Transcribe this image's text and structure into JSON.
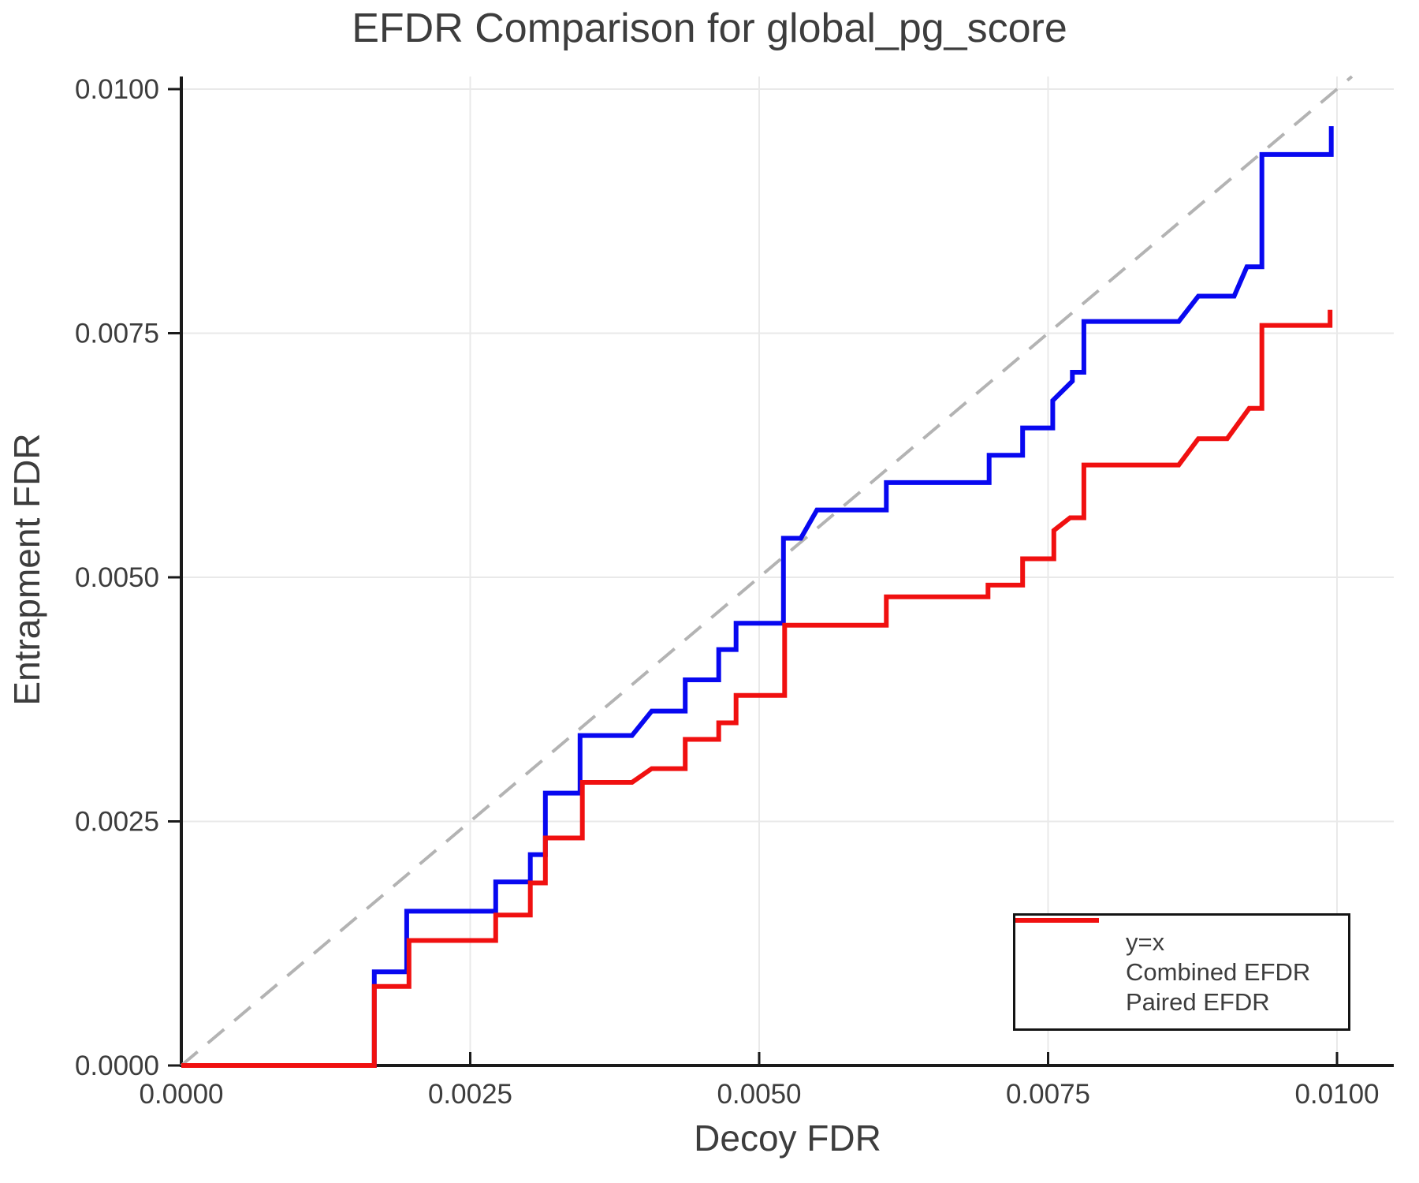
{
  "chart_data": {
    "type": "line",
    "title": "EFDR Comparison for global_pg_score",
    "xlabel": "Decoy FDR",
    "ylabel": "Entrapment FDR",
    "xlim": [
      0.0,
      0.010491
    ],
    "ylim": [
      0.0,
      0.010129
    ],
    "grid": true,
    "legend_position": "bottom-right",
    "colors": {
      "grid": "#e9e9e9",
      "axis": "#1a1a1a",
      "text": "#3d3d3d",
      "background": "#ffffff",
      "diagonal": "#b3b3b3",
      "combined": "#0808f0",
      "paired": "#f01010"
    },
    "xticks": {
      "values": [
        0.0,
        0.0025,
        0.005,
        0.0075,
        0.01
      ],
      "labels": [
        "0.0000",
        "0.0025",
        "0.0050",
        "0.0075",
        "0.0100"
      ]
    },
    "yticks": {
      "values": [
        0.0,
        0.0025,
        0.005,
        0.0075,
        0.01
      ],
      "labels": [
        "0.0000",
        "0.0025",
        "0.0050",
        "0.0075",
        "0.0100"
      ]
    },
    "series": [
      {
        "name": "y=x",
        "style": "dashed",
        "color": "#b3b3b3",
        "width": 4,
        "points": [
          [
            0.0,
            0.0
          ],
          [
            0.010129,
            0.010129
          ]
        ]
      },
      {
        "name": "Combined EFDR",
        "style": "solid",
        "color": "#0808f0",
        "width": 6,
        "points": [
          [
            0.0,
            0.0
          ],
          [
            0.00167,
            0.0
          ],
          [
            0.00167,
            0.00096
          ],
          [
            0.00195,
            0.00096
          ],
          [
            0.00195,
            0.00158
          ],
          [
            0.00272,
            0.00158
          ],
          [
            0.00272,
            0.00188
          ],
          [
            0.00302,
            0.00188
          ],
          [
            0.00302,
            0.00216
          ],
          [
            0.00315,
            0.00216
          ],
          [
            0.00315,
            0.00279
          ],
          [
            0.00345,
            0.00279
          ],
          [
            0.00345,
            0.00338
          ],
          [
            0.0039,
            0.00338
          ],
          [
            0.00407,
            0.00363
          ],
          [
            0.00436,
            0.00363
          ],
          [
            0.00436,
            0.00395
          ],
          [
            0.00465,
            0.00395
          ],
          [
            0.00465,
            0.00426
          ],
          [
            0.0048,
            0.00426
          ],
          [
            0.0048,
            0.00453
          ],
          [
            0.00521,
            0.00453
          ],
          [
            0.00521,
            0.0054
          ],
          [
            0.00536,
            0.0054
          ],
          [
            0.0055,
            0.00569
          ],
          [
            0.0061,
            0.00569
          ],
          [
            0.0061,
            0.00597
          ],
          [
            0.00699,
            0.00597
          ],
          [
            0.00699,
            0.00625
          ],
          [
            0.00728,
            0.00625
          ],
          [
            0.00728,
            0.00653
          ],
          [
            0.00754,
            0.00653
          ],
          [
            0.00754,
            0.00681
          ],
          [
            0.00771,
            0.00701
          ],
          [
            0.00771,
            0.0071
          ],
          [
            0.00781,
            0.0071
          ],
          [
            0.00781,
            0.00762
          ],
          [
            0.00863,
            0.00762
          ],
          [
            0.0088,
            0.00788
          ],
          [
            0.00911,
            0.00788
          ],
          [
            0.00922,
            0.00818
          ],
          [
            0.00935,
            0.00818
          ],
          [
            0.00935,
            0.00933
          ],
          [
            0.00995,
            0.00933
          ],
          [
            0.00995,
            0.00962
          ]
        ]
      },
      {
        "name": "Paired EFDR",
        "style": "solid",
        "color": "#f01010",
        "width": 6,
        "points": [
          [
            0.0,
            0.0
          ],
          [
            0.00167,
            0.0
          ],
          [
            0.00167,
            0.00081
          ],
          [
            0.00197,
            0.00081
          ],
          [
            0.00197,
            0.00128
          ],
          [
            0.00272,
            0.00128
          ],
          [
            0.00272,
            0.00154
          ],
          [
            0.00302,
            0.00154
          ],
          [
            0.00302,
            0.00187
          ],
          [
            0.00315,
            0.00187
          ],
          [
            0.00315,
            0.00233
          ],
          [
            0.00347,
            0.00233
          ],
          [
            0.00347,
            0.0029
          ],
          [
            0.0039,
            0.0029
          ],
          [
            0.00407,
            0.00304
          ],
          [
            0.00436,
            0.00304
          ],
          [
            0.00436,
            0.00334
          ],
          [
            0.00465,
            0.00334
          ],
          [
            0.00465,
            0.00351
          ],
          [
            0.0048,
            0.00351
          ],
          [
            0.0048,
            0.00379
          ],
          [
            0.00522,
            0.00379
          ],
          [
            0.00522,
            0.00451
          ],
          [
            0.0061,
            0.00451
          ],
          [
            0.0061,
            0.0048
          ],
          [
            0.00698,
            0.0048
          ],
          [
            0.00698,
            0.00492
          ],
          [
            0.00728,
            0.00492
          ],
          [
            0.00728,
            0.00519
          ],
          [
            0.00755,
            0.00519
          ],
          [
            0.00755,
            0.00548
          ],
          [
            0.00769,
            0.00561
          ],
          [
            0.00781,
            0.00561
          ],
          [
            0.00781,
            0.00615
          ],
          [
            0.00863,
            0.00615
          ],
          [
            0.0088,
            0.00642
          ],
          [
            0.00905,
            0.00642
          ],
          [
            0.00924,
            0.00673
          ],
          [
            0.00935,
            0.00673
          ],
          [
            0.00935,
            0.00758
          ],
          [
            0.00994,
            0.00758
          ],
          [
            0.00994,
            0.00774
          ]
        ]
      }
    ]
  }
}
